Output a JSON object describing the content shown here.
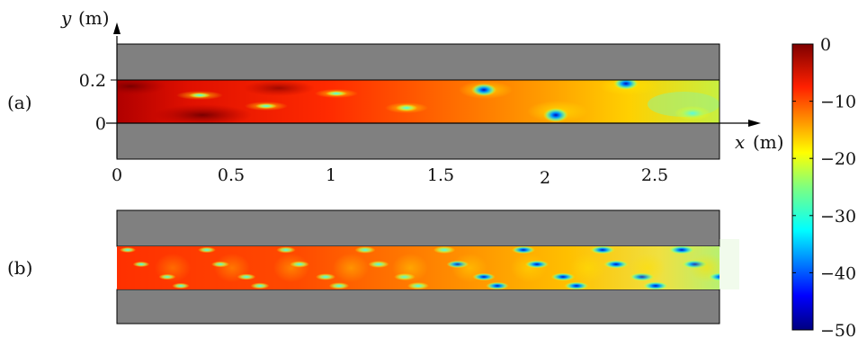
{
  "panels": {
    "a_label": "(a)",
    "b_label": "(b)"
  },
  "axes": {
    "y_var": "y",
    "y_unit": "(m)",
    "x_var": "x",
    "x_unit": "(m)",
    "y_ticks": [
      "0.2",
      "0"
    ],
    "x_ticks": [
      "0",
      "0.5",
      "1",
      "1.5",
      "2",
      "2.5"
    ]
  },
  "colorbar": {
    "ticks": [
      "0",
      "−10",
      "−20",
      "−30",
      "−40",
      "−50"
    ],
    "range": [
      -50,
      0
    ],
    "colormap": "jet"
  },
  "colors": {
    "wall": "#808080",
    "dark_red": "#8b0000",
    "red": "#ff1a00",
    "orange": "#ff8c00",
    "yellow": "#ffe600",
    "cyan": "#00ffff",
    "blue": "#0000ff",
    "navy": "#00008b"
  }
}
